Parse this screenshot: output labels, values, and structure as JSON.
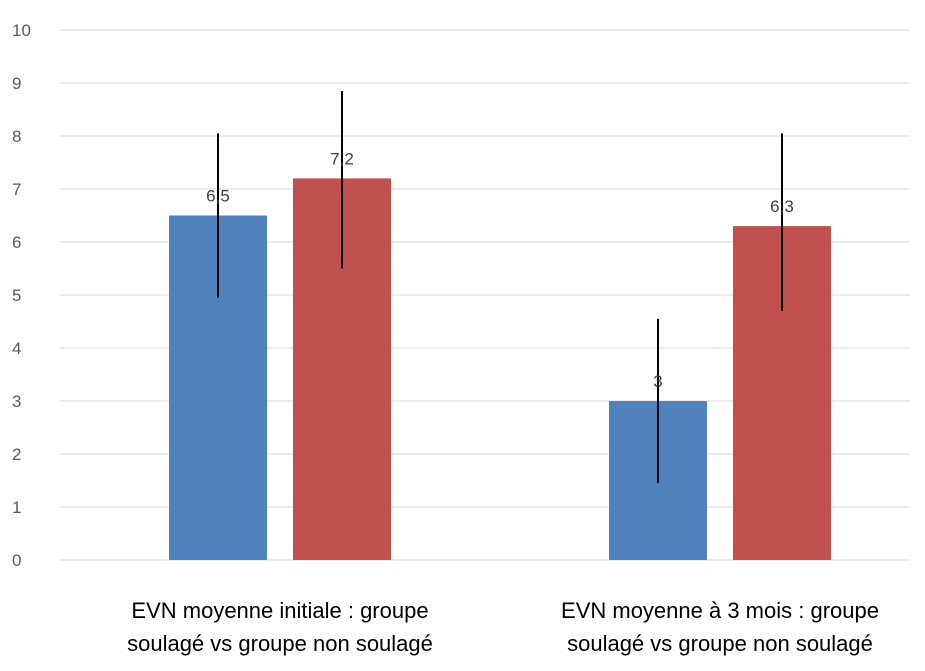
{
  "chart_data": {
    "type": "bar",
    "title": "",
    "xlabel": "",
    "ylabel": "",
    "ylim": [
      0,
      10
    ],
    "yticks": [
      0,
      1,
      2,
      3,
      4,
      5,
      6,
      7,
      8,
      9,
      10
    ],
    "grid": true,
    "legend": "none",
    "categories": [
      [
        "EVN moyenne initiale : groupe",
        "soulagé vs groupe non soulagé"
      ],
      [
        "EVN moyenne à 3 mois : groupe",
        "soulagé vs groupe non soulagé"
      ]
    ],
    "series": [
      {
        "values": [
          6.5,
          3
        ],
        "labels": [
          "6,5",
          "3"
        ],
        "error_low": [
          4.95,
          1.45
        ],
        "error_high": [
          8.05,
          4.55
        ],
        "color": "#4f81bd"
      },
      {
        "values": [
          7.2,
          6.3
        ],
        "labels": [
          "7,2",
          "6,3"
        ],
        "error_low": [
          5.5,
          4.7
        ],
        "error_high": [
          8.85,
          8.05
        ],
        "color": "#c0504d"
      }
    ]
  }
}
